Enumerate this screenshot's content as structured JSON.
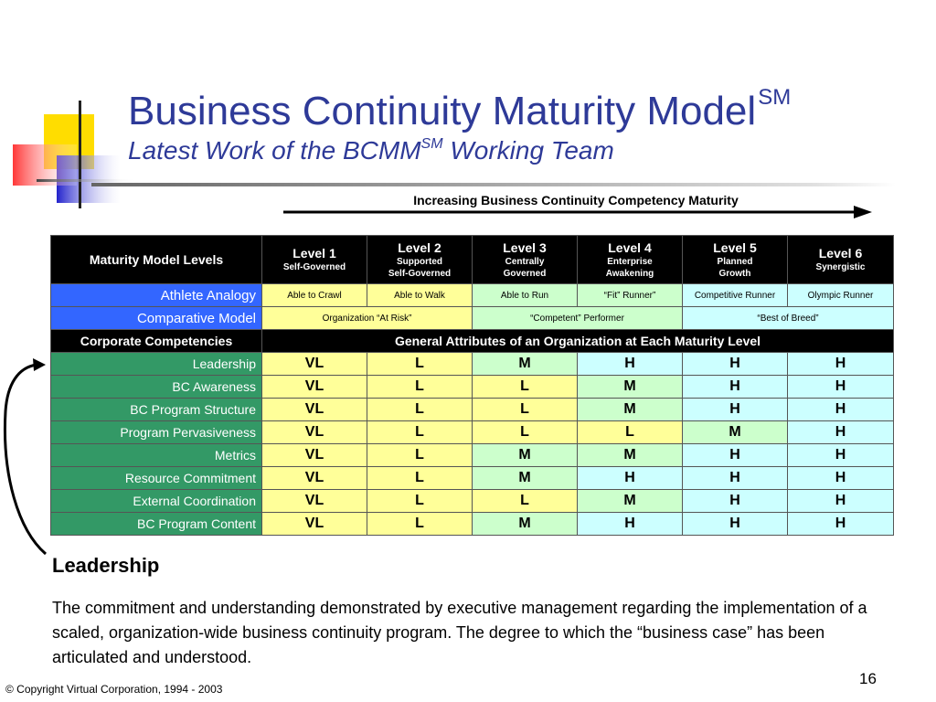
{
  "title": {
    "main": "Business Continuity Maturity Model",
    "main_sup": "SM",
    "sub_prefix": "Latest Work of the BCMM",
    "sub_sup": "SM",
    "sub_suffix": " Working Team"
  },
  "arrow_label": "Increasing Business Continuity Competency Maturity",
  "table": {
    "header_label": "Maturity Model Levels",
    "levels": [
      {
        "name": "Level 1",
        "desc1": "Self-Governed",
        "desc2": ""
      },
      {
        "name": "Level 2",
        "desc1": "Supported",
        "desc2": "Self-Governed"
      },
      {
        "name": "Level 3",
        "desc1": "Centrally",
        "desc2": "Governed"
      },
      {
        "name": "Level 4",
        "desc1": "Enterprise",
        "desc2": "Awakening"
      },
      {
        "name": "Level 5",
        "desc1": "Planned",
        "desc2": "Growth"
      },
      {
        "name": "Level 6",
        "desc1": "Synergistic",
        "desc2": ""
      }
    ],
    "athlete": {
      "label": "Athlete Analogy",
      "values": [
        "Able to Crawl",
        "Able to Walk",
        "Able to Run",
        "“Fit” Runner”",
        "Competitive Runner",
        "Olympic Runner"
      ]
    },
    "comparative": {
      "label": "Comparative Model",
      "values": [
        "Organization “At Risk”",
        "“Competent” Performer",
        "“Best of Breed”"
      ]
    },
    "section": {
      "label": "Corporate Competencies",
      "attributes": "General Attributes of an Organization at Each Maturity Level"
    },
    "competencies": [
      {
        "name": "Leadership",
        "values": [
          "VL",
          "L",
          "M",
          "H",
          "H",
          "H"
        ]
      },
      {
        "name": "BC Awareness",
        "values": [
          "VL",
          "L",
          "L",
          "M",
          "H",
          "H"
        ]
      },
      {
        "name": "BC Program Structure",
        "values": [
          "VL",
          "L",
          "L",
          "M",
          "H",
          "H"
        ]
      },
      {
        "name": "Program Pervasiveness",
        "values": [
          "VL",
          "L",
          "L",
          "L",
          "M",
          "H"
        ]
      },
      {
        "name": "Metrics",
        "values": [
          "VL",
          "L",
          "M",
          "M",
          "H",
          "H"
        ]
      },
      {
        "name": "Resource Commitment",
        "values": [
          "VL",
          "L",
          "M",
          "H",
          "H",
          "H"
        ]
      },
      {
        "name": "External Coordination",
        "values": [
          "VL",
          "L",
          "L",
          "M",
          "H",
          "H"
        ]
      },
      {
        "name": "BC Program Content",
        "values": [
          "VL",
          "L",
          "M",
          "H",
          "H",
          "H"
        ]
      }
    ]
  },
  "definition": {
    "title": "Leadership",
    "body": "The commitment and understanding demonstrated by executive management regarding the implementation of a scaled, organization-wide business continuity program.  The degree to which the “business case” has been articulated and understood."
  },
  "page_number": "16",
  "copyright": "© Copyright Virtual Corporation, 1994 - 2003",
  "colors": {
    "title": "#2e3a98",
    "blue_label": "#3366ff",
    "green_label": "#339966",
    "yellow": "#ffff99",
    "green": "#ccffcc",
    "cyan": "#ccffff"
  }
}
